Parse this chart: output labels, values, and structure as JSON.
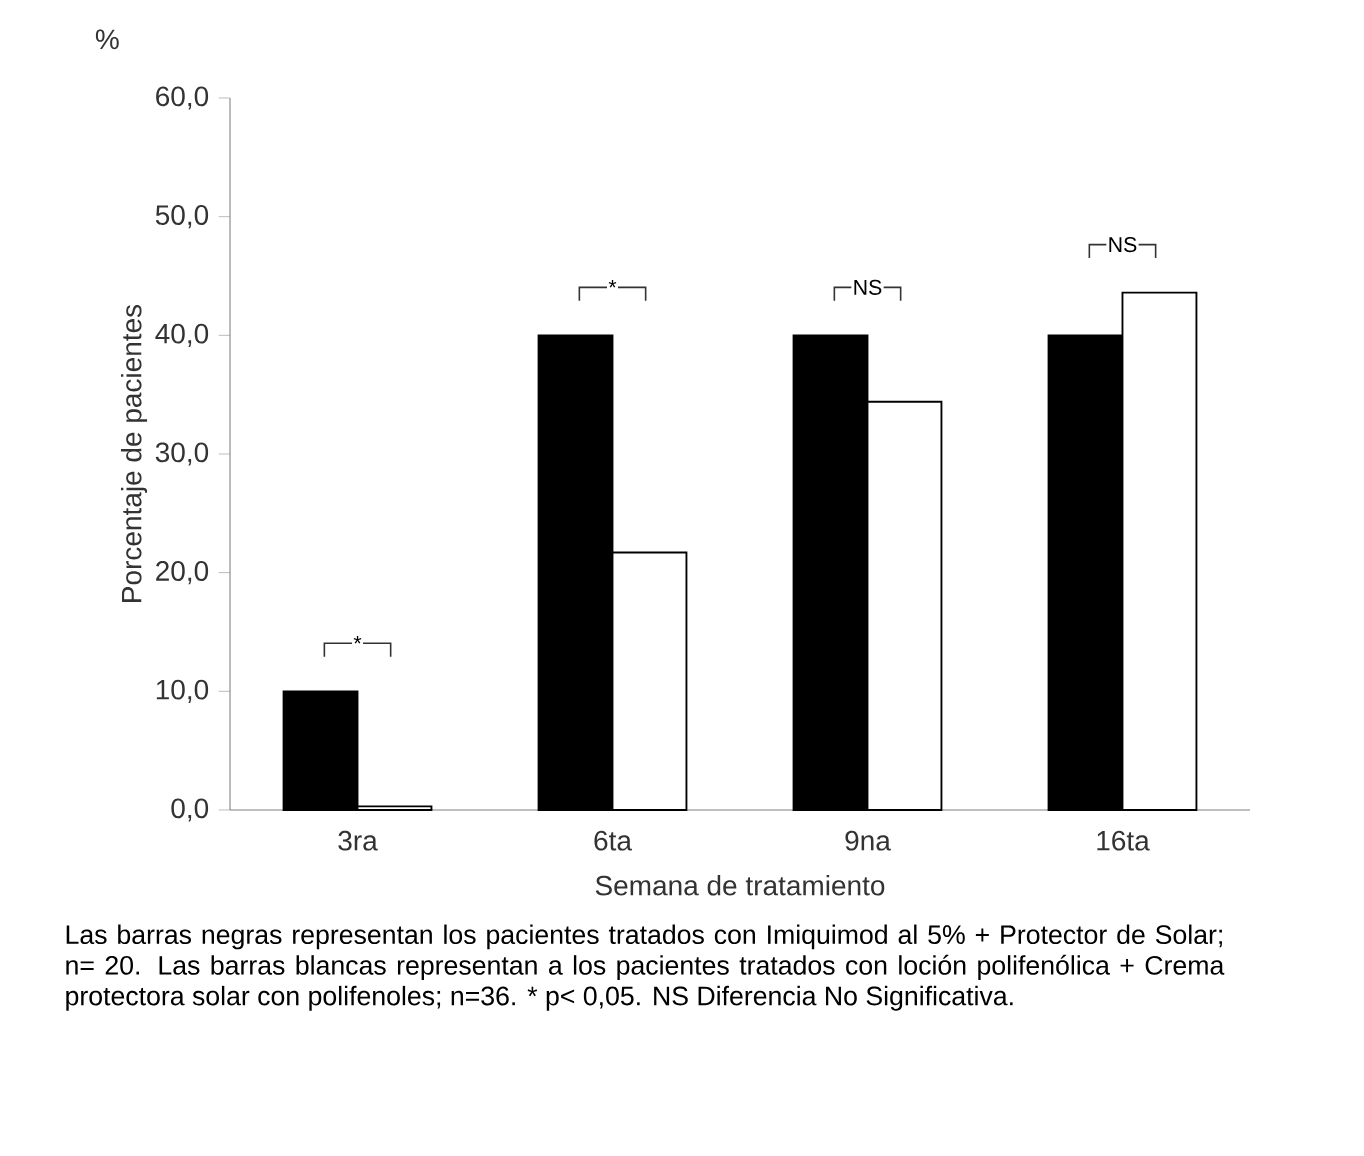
{
  "chart_data": {
    "type": "bar",
    "xlabel": "Semana de tratamiento",
    "ylabel": "Porcentaje de pacientes",
    "categories": [
      "3ra",
      "6ta",
      "9na",
      "16ta"
    ],
    "series": [
      {
        "color": "#000000",
        "values": [
          10,
          40,
          40,
          40
        ]
      },
      {
        "color": "#ffffff",
        "values": [
          0.3,
          21.7,
          34.4,
          43.6
        ]
      }
    ],
    "ylim": [
      0,
      60
    ],
    "yticks": [
      {
        "value": 0,
        "label": "0,0"
      },
      {
        "value": 10,
        "label": "10,0"
      },
      {
        "value": 20,
        "label": "20,0"
      },
      {
        "value": 30,
        "label": "30,0"
      },
      {
        "value": 40,
        "label": "40,0"
      },
      {
        "value": 50,
        "label": "50,0"
      },
      {
        "value": 60,
        "label": "60,0"
      }
    ],
    "grid": false,
    "annotations": [
      "*",
      "*",
      "NS",
      "NS",
      "%",
      "Las barras negras representan los pacientes tratados con Imiquimod al 5% + Protector de Solar; n= 20. Las barras blancas representan a los pacientes tratados con loción polifenólica + Crema protectora solar con polifenoles; n=36.  * p< 0,05. NS Diferencia No Significativa."
    ]
  }
}
